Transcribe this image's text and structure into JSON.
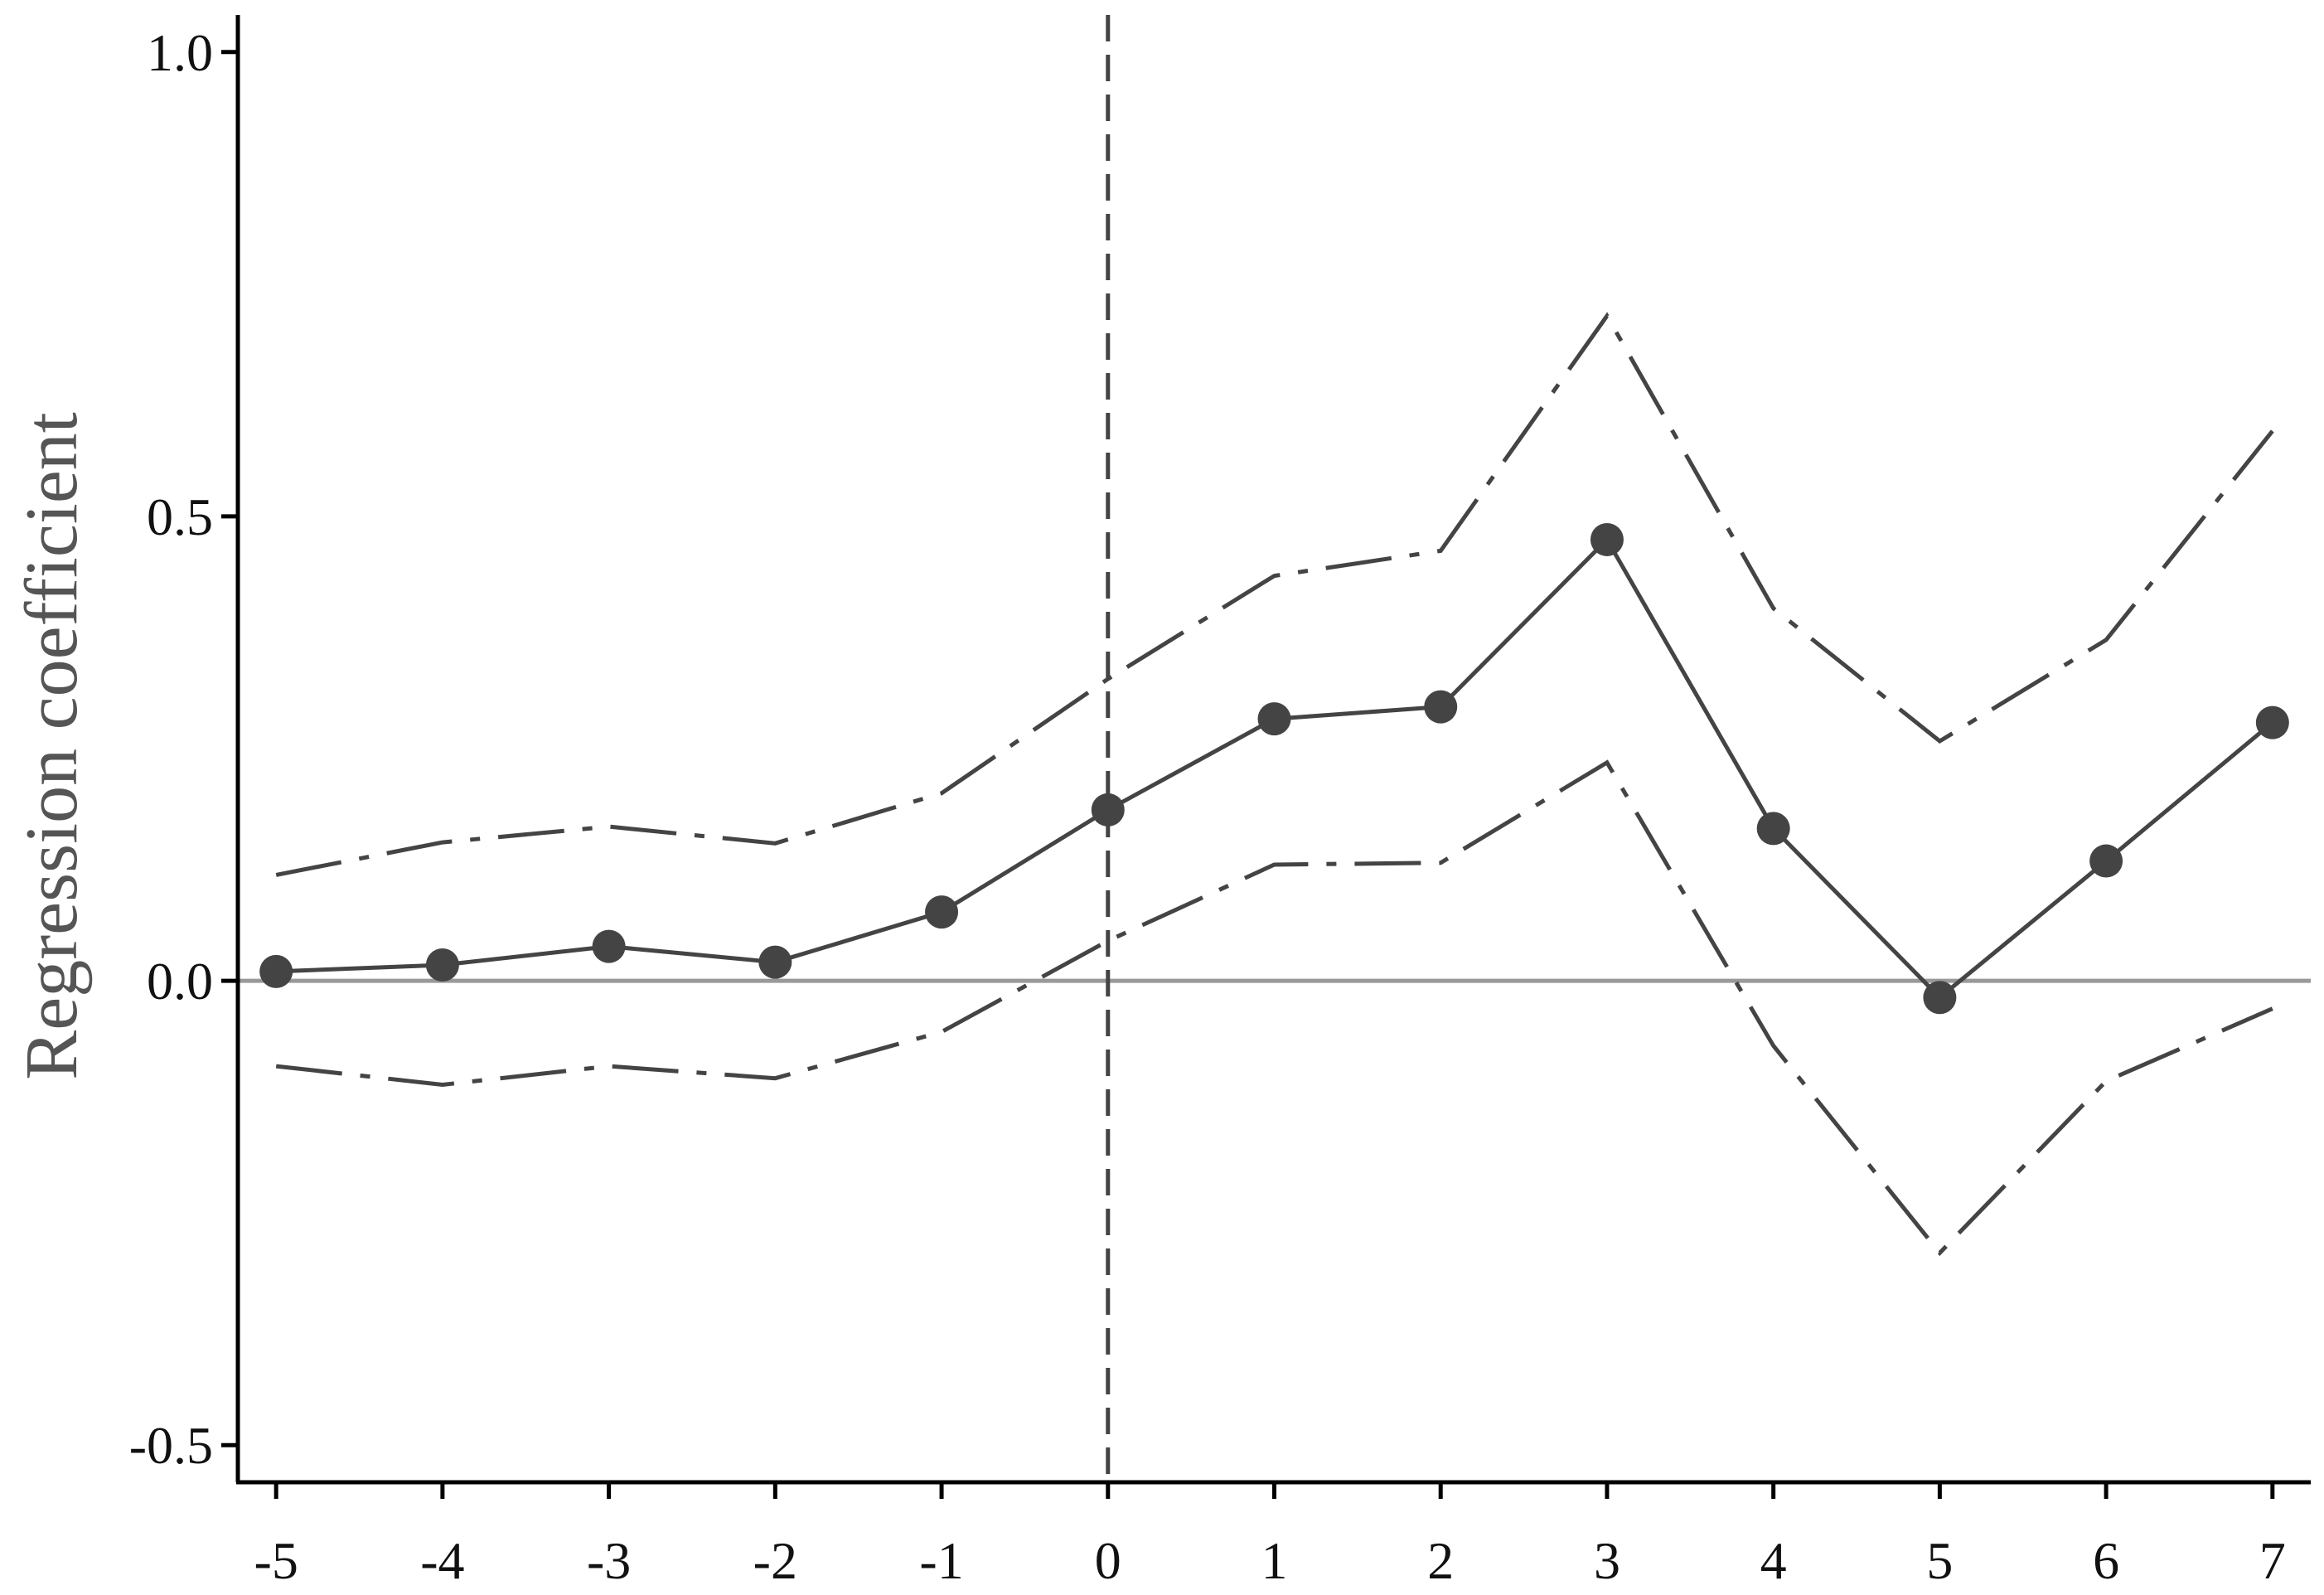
{
  "chart_data": {
    "type": "line",
    "title": "",
    "xlabel": "",
    "ylabel": "Regression coefficient",
    "x": [
      -5,
      -4,
      -3,
      -2,
      -1,
      0,
      1,
      2,
      3,
      4,
      5,
      6,
      7
    ],
    "x_tick_labels": [
      "-5",
      "-4",
      "-3",
      "-2",
      "-1",
      "0",
      "1",
      "2",
      "3",
      "4",
      "5",
      "6",
      "7"
    ],
    "xlim": [
      -5.23,
      7.23
    ],
    "ylim": [
      -0.54,
      1.04
    ],
    "y_ticks": [
      1.0,
      0.5,
      0.0,
      -0.5
    ],
    "y_tick_labels": [
      "1.0",
      "0.5",
      "0.0",
      "-0.5"
    ],
    "series": [
      {
        "role": "estimate",
        "style": "solid-with-markers",
        "values": [
          0.01,
          0.017,
          0.037,
          0.02,
          0.074,
          0.184,
          0.282,
          0.295,
          0.475,
          0.164,
          -0.018,
          0.129,
          0.278
        ]
      },
      {
        "role": "upper-bound",
        "style": "dash-dot",
        "values": [
          0.114,
          0.149,
          0.166,
          0.148,
          0.202,
          0.325,
          0.436,
          0.463,
          0.716,
          0.401,
          0.258,
          0.367,
          0.592
        ]
      },
      {
        "role": "lower-bound",
        "style": "dash-dot",
        "values": [
          -0.092,
          -0.112,
          -0.092,
          -0.105,
          -0.055,
          0.043,
          0.125,
          0.127,
          0.235,
          -0.07,
          -0.293,
          -0.108,
          -0.03
        ]
      }
    ],
    "reference_lines": {
      "horizontal_y": 0.0,
      "vertical_x": 0
    },
    "colors": {
      "series": "#444444",
      "zero_line": "#999999",
      "axis": "#000000"
    },
    "grid": false,
    "legend": "none"
  }
}
